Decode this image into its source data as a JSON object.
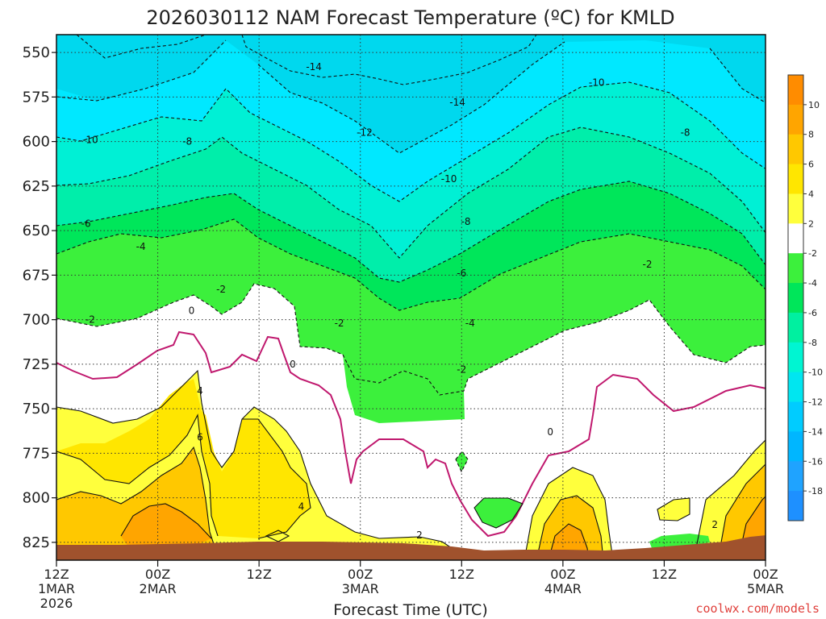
{
  "chart_data": {
    "type": "heatmap",
    "title": "2026030112 NAM Forecast Temperature (ºC) for KMLD",
    "xlabel": "Forecast Time (UTC)",
    "ylabel": "",
    "credit": "coolwx.com/models",
    "y_axis": {
      "unit": "hPa",
      "ticks": [
        550,
        575,
        600,
        625,
        650,
        675,
        700,
        725,
        750,
        775,
        800,
        825
      ],
      "range": [
        540,
        835
      ],
      "grid": true
    },
    "x_axis": {
      "range_hours": [
        0,
        84
      ],
      "ticks": [
        {
          "hour": 0,
          "lines": [
            "12Z",
            "1MAR",
            "2026"
          ]
        },
        {
          "hour": 12,
          "lines": [
            "00Z",
            "2MAR"
          ]
        },
        {
          "hour": 24,
          "lines": [
            "12Z"
          ]
        },
        {
          "hour": 36,
          "lines": [
            "00Z",
            "3MAR"
          ]
        },
        {
          "hour": 48,
          "lines": [
            "12Z"
          ]
        },
        {
          "hour": 60,
          "lines": [
            "00Z",
            "4MAR"
          ]
        },
        {
          "hour": 72,
          "lines": [
            "12Z"
          ]
        },
        {
          "hour": 84,
          "lines": [
            "00Z",
            "5MAR"
          ]
        }
      ],
      "grid": true
    },
    "colorbar": {
      "levels": [
        -20,
        -18,
        -16,
        -14,
        -12,
        -10,
        -8,
        -6,
        -4,
        -2,
        2,
        4,
        6,
        8,
        10,
        12
      ],
      "colors": [
        "#1e90ff",
        "#1fa3ff",
        "#00b6ff",
        "#00ccff",
        "#00e6f0",
        "#00f5d2",
        "#00f0a0",
        "#00e65a",
        "#3cf03c",
        "#ffffff",
        "#ffff3c",
        "#ffe600",
        "#ffc800",
        "#ffa500",
        "#ff8c00"
      ],
      "tick_labels": [
        "-18",
        "-16",
        "-14",
        "-12",
        "-10",
        "-8",
        "-6",
        "-4",
        "-2",
        "2",
        "4",
        "6",
        "8",
        "10"
      ]
    },
    "ground_color": "#a0522d",
    "contour_labels": [
      {
        "v": "-14",
        "h": 30.5,
        "p": 558
      },
      {
        "v": "-14",
        "h": 47.5,
        "p": 578
      },
      {
        "v": "-12",
        "h": 36.5,
        "p": 595
      },
      {
        "v": "-10",
        "h": 4.0,
        "p": 599
      },
      {
        "v": "-10",
        "h": 46.5,
        "p": 621
      },
      {
        "v": "-10",
        "h": 64.0,
        "p": 567
      },
      {
        "v": "-8",
        "h": 15.5,
        "p": 600
      },
      {
        "v": "-8",
        "h": 48.5,
        "p": 645
      },
      {
        "v": "-8",
        "h": 74.5,
        "p": 595
      },
      {
        "v": "-6",
        "h": 3.5,
        "p": 646
      },
      {
        "v": "-6",
        "h": 48.0,
        "p": 674
      },
      {
        "v": "-4",
        "h": 10.0,
        "p": 659
      },
      {
        "v": "-4",
        "h": 49.0,
        "p": 702
      },
      {
        "v": "-2",
        "h": 4.0,
        "p": 700
      },
      {
        "v": "-2",
        "h": 19.5,
        "p": 683
      },
      {
        "v": "-2",
        "h": 33.5,
        "p": 702
      },
      {
        "v": "-2",
        "h": 48.0,
        "p": 728
      },
      {
        "v": "-2",
        "h": 70.0,
        "p": 669
      },
      {
        "v": "0",
        "h": 16.0,
        "p": 695
      },
      {
        "v": "0",
        "h": 28.0,
        "p": 725
      },
      {
        "v": "0",
        "h": 58.5,
        "p": 763
      },
      {
        "v": "4",
        "h": 17.0,
        "p": 740
      },
      {
        "v": "6",
        "h": 17.0,
        "p": 766
      },
      {
        "v": "4",
        "h": 29.0,
        "p": 805
      },
      {
        "v": "2",
        "h": 43.0,
        "p": 821
      },
      {
        "v": "2",
        "h": 78.0,
        "p": 815
      }
    ]
  }
}
